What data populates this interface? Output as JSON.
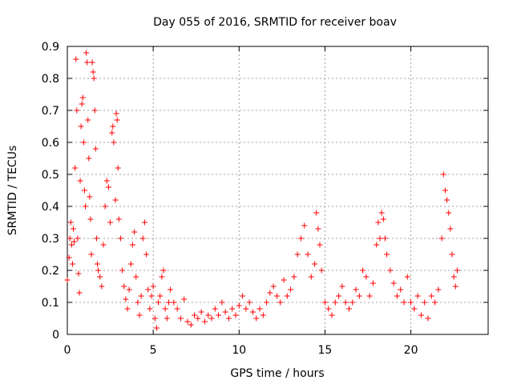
{
  "chart_data": {
    "type": "scatter",
    "title": "Day 055 of 2016, SRMTID for receiver boav",
    "xlabel": "GPS time / hours",
    "ylabel": "SRMTID / TECUs",
    "xlim": [
      0,
      24.5
    ],
    "ylim": [
      0,
      0.9
    ],
    "xticks": [
      0,
      5,
      10,
      15,
      20
    ],
    "xtick_labels": [
      "0",
      "5",
      "10",
      "15",
      "20"
    ],
    "yticks": [
      0,
      0.1,
      0.2,
      0.3,
      0.4,
      0.5,
      0.6,
      0.7,
      0.8,
      0.9
    ],
    "ytick_labels": [
      "0",
      "0.1",
      "0.2",
      "0.3",
      "0.4",
      "0.5",
      "0.6",
      "0.7",
      "0.8",
      "0.9"
    ],
    "grid": true,
    "marker": "plus",
    "color": "#ff0000",
    "series": [
      {
        "name": "SRMTID",
        "points": [
          [
            0.0,
            0.17
          ],
          [
            0.1,
            0.24
          ],
          [
            0.15,
            0.3
          ],
          [
            0.2,
            0.35
          ],
          [
            0.25,
            0.28
          ],
          [
            0.3,
            0.22
          ],
          [
            0.35,
            0.33
          ],
          [
            0.4,
            0.29
          ],
          [
            0.45,
            0.52
          ],
          [
            0.5,
            0.86
          ],
          [
            0.55,
            0.7
          ],
          [
            0.6,
            0.3
          ],
          [
            0.65,
            0.19
          ],
          [
            0.7,
            0.13
          ],
          [
            0.75,
            0.48
          ],
          [
            0.8,
            0.65
          ],
          [
            0.85,
            0.72
          ],
          [
            0.9,
            0.74
          ],
          [
            0.95,
            0.6
          ],
          [
            1.0,
            0.45
          ],
          [
            1.05,
            0.4
          ],
          [
            1.1,
            0.88
          ],
          [
            1.15,
            0.85
          ],
          [
            1.2,
            0.67
          ],
          [
            1.25,
            0.55
          ],
          [
            1.3,
            0.43
          ],
          [
            1.35,
            0.36
          ],
          [
            1.4,
            0.25
          ],
          [
            1.45,
            0.85
          ],
          [
            1.5,
            0.82
          ],
          [
            1.55,
            0.8
          ],
          [
            1.6,
            0.7
          ],
          [
            1.65,
            0.58
          ],
          [
            1.7,
            0.3
          ],
          [
            1.75,
            0.22
          ],
          [
            1.8,
            0.2
          ],
          [
            1.9,
            0.18
          ],
          [
            2.0,
            0.15
          ],
          [
            2.1,
            0.28
          ],
          [
            2.2,
            0.4
          ],
          [
            2.3,
            0.48
          ],
          [
            2.4,
            0.46
          ],
          [
            2.5,
            0.35
          ],
          [
            2.6,
            0.63
          ],
          [
            2.65,
            0.65
          ],
          [
            2.7,
            0.6
          ],
          [
            2.8,
            0.42
          ],
          [
            2.85,
            0.69
          ],
          [
            2.9,
            0.67
          ],
          [
            2.95,
            0.52
          ],
          [
            3.0,
            0.36
          ],
          [
            3.1,
            0.3
          ],
          [
            3.2,
            0.2
          ],
          [
            3.3,
            0.15
          ],
          [
            3.4,
            0.11
          ],
          [
            3.5,
            0.08
          ],
          [
            3.6,
            0.14
          ],
          [
            3.7,
            0.22
          ],
          [
            3.8,
            0.28
          ],
          [
            3.9,
            0.32
          ],
          [
            4.0,
            0.18
          ],
          [
            4.1,
            0.1
          ],
          [
            4.2,
            0.06
          ],
          [
            4.3,
            0.12
          ],
          [
            4.4,
            0.3
          ],
          [
            4.5,
            0.35
          ],
          [
            4.6,
            0.25
          ],
          [
            4.7,
            0.14
          ],
          [
            4.8,
            0.08
          ],
          [
            4.9,
            0.12
          ],
          [
            5.0,
            0.15
          ],
          [
            5.1,
            0.05
          ],
          [
            5.2,
            0.02
          ],
          [
            5.3,
            0.1
          ],
          [
            5.4,
            0.12
          ],
          [
            5.5,
            0.18
          ],
          [
            5.6,
            0.2
          ],
          [
            5.7,
            0.08
          ],
          [
            5.8,
            0.05
          ],
          [
            5.9,
            0.1
          ],
          [
            6.0,
            0.14
          ],
          [
            6.2,
            0.1
          ],
          [
            6.4,
            0.08
          ],
          [
            6.6,
            0.05
          ],
          [
            6.8,
            0.11
          ],
          [
            7.0,
            0.04
          ],
          [
            7.2,
            0.03
          ],
          [
            7.4,
            0.06
          ],
          [
            7.6,
            0.05
          ],
          [
            7.8,
            0.07
          ],
          [
            8.0,
            0.04
          ],
          [
            8.2,
            0.06
          ],
          [
            8.4,
            0.05
          ],
          [
            8.6,
            0.08
          ],
          [
            8.8,
            0.06
          ],
          [
            9.0,
            0.1
          ],
          [
            9.2,
            0.07
          ],
          [
            9.4,
            0.05
          ],
          [
            9.6,
            0.08
          ],
          [
            9.8,
            0.06
          ],
          [
            10.0,
            0.09
          ],
          [
            10.2,
            0.12
          ],
          [
            10.4,
            0.08
          ],
          [
            10.6,
            0.1
          ],
          [
            10.8,
            0.07
          ],
          [
            11.0,
            0.05
          ],
          [
            11.2,
            0.08
          ],
          [
            11.4,
            0.06
          ],
          [
            11.6,
            0.1
          ],
          [
            11.8,
            0.13
          ],
          [
            12.0,
            0.15
          ],
          [
            12.2,
            0.12
          ],
          [
            12.4,
            0.1
          ],
          [
            12.6,
            0.17
          ],
          [
            12.8,
            0.12
          ],
          [
            13.0,
            0.14
          ],
          [
            13.2,
            0.18
          ],
          [
            13.4,
            0.25
          ],
          [
            13.6,
            0.3
          ],
          [
            13.8,
            0.34
          ],
          [
            14.0,
            0.25
          ],
          [
            14.2,
            0.18
          ],
          [
            14.4,
            0.22
          ],
          [
            14.5,
            0.38
          ],
          [
            14.6,
            0.33
          ],
          [
            14.7,
            0.28
          ],
          [
            14.8,
            0.2
          ],
          [
            15.0,
            0.1
          ],
          [
            15.2,
            0.08
          ],
          [
            15.4,
            0.06
          ],
          [
            15.6,
            0.1
          ],
          [
            15.8,
            0.12
          ],
          [
            16.0,
            0.15
          ],
          [
            16.2,
            0.1
          ],
          [
            16.4,
            0.08
          ],
          [
            16.6,
            0.1
          ],
          [
            16.8,
            0.14
          ],
          [
            17.0,
            0.12
          ],
          [
            17.2,
            0.2
          ],
          [
            17.4,
            0.18
          ],
          [
            17.6,
            0.12
          ],
          [
            17.8,
            0.16
          ],
          [
            18.0,
            0.28
          ],
          [
            18.1,
            0.35
          ],
          [
            18.2,
            0.3
          ],
          [
            18.3,
            0.38
          ],
          [
            18.4,
            0.36
          ],
          [
            18.5,
            0.3
          ],
          [
            18.6,
            0.25
          ],
          [
            18.8,
            0.2
          ],
          [
            19.0,
            0.16
          ],
          [
            19.2,
            0.12
          ],
          [
            19.4,
            0.14
          ],
          [
            19.6,
            0.1
          ],
          [
            19.8,
            0.18
          ],
          [
            20.0,
            0.1
          ],
          [
            20.2,
            0.08
          ],
          [
            20.4,
            0.12
          ],
          [
            20.6,
            0.06
          ],
          [
            20.8,
            0.1
          ],
          [
            21.0,
            0.05
          ],
          [
            21.2,
            0.12
          ],
          [
            21.4,
            0.1
          ],
          [
            21.6,
            0.14
          ],
          [
            21.8,
            0.3
          ],
          [
            21.9,
            0.5
          ],
          [
            22.0,
            0.45
          ],
          [
            22.1,
            0.42
          ],
          [
            22.2,
            0.38
          ],
          [
            22.3,
            0.33
          ],
          [
            22.4,
            0.25
          ],
          [
            22.5,
            0.18
          ],
          [
            22.6,
            0.15
          ],
          [
            22.7,
            0.2
          ]
        ]
      }
    ]
  }
}
